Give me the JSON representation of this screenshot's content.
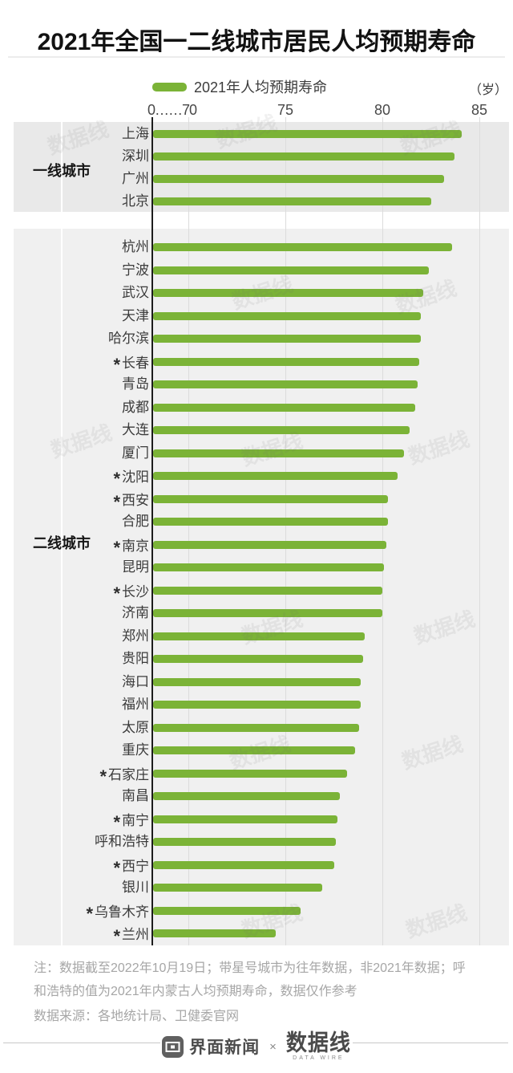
{
  "title": "2021年全国一二线城市居民人均预期寿命",
  "legend": {
    "label": "2021年人均预期寿命"
  },
  "unit_label": "（岁）",
  "axis": {
    "tick_labels": [
      "0……70",
      "75",
      "80",
      "85"
    ],
    "tick_values": [
      70,
      75,
      80,
      85
    ]
  },
  "colors": {
    "bar_green": "#7bb337",
    "axis_line": "#1d1d1d"
  },
  "chart_data": {
    "type": "bar",
    "orientation": "horizontal",
    "title": "2021年全国一二线城市居民人均预期寿命",
    "legend": [
      "2021年人均预期寿命"
    ],
    "unit": "岁",
    "xlabel": "人均预期寿命（岁）",
    "xlim": [
      70,
      85
    ],
    "axis_break_label": "0……70",
    "grid": true,
    "bar_color": "#7bb337",
    "star_meaning": "带星号城市为往年数据，非2021年数据",
    "groups": [
      {
        "label": "一线城市",
        "bars": [
          {
            "city": "上海",
            "value": 84.1,
            "star": false
          },
          {
            "city": "深圳",
            "value": 83.7,
            "star": false
          },
          {
            "city": "广州",
            "value": 83.2,
            "star": false
          },
          {
            "city": "北京",
            "value": 82.5,
            "star": false
          }
        ]
      },
      {
        "label": "二线城市",
        "bars": [
          {
            "city": "杭州",
            "value": 83.6,
            "star": false
          },
          {
            "city": "宁波",
            "value": 82.4,
            "star": false
          },
          {
            "city": "武汉",
            "value": 82.1,
            "star": false
          },
          {
            "city": "天津",
            "value": 82.0,
            "star": false
          },
          {
            "city": "哈尔滨",
            "value": 82.0,
            "star": false
          },
          {
            "city": "长春",
            "value": 81.9,
            "star": true
          },
          {
            "city": "青岛",
            "value": 81.8,
            "star": false
          },
          {
            "city": "成都",
            "value": 81.7,
            "star": false
          },
          {
            "city": "大连",
            "value": 81.4,
            "star": false
          },
          {
            "city": "厦门",
            "value": 81.1,
            "star": false
          },
          {
            "city": "沈阳",
            "value": 80.8,
            "star": true
          },
          {
            "city": "西安",
            "value": 80.3,
            "star": true
          },
          {
            "city": "合肥",
            "value": 80.3,
            "star": false
          },
          {
            "city": "南京",
            "value": 80.2,
            "star": true
          },
          {
            "city": "昆明",
            "value": 80.1,
            "star": false
          },
          {
            "city": "长沙",
            "value": 80.0,
            "star": true
          },
          {
            "city": "济南",
            "value": 80.0,
            "star": false
          },
          {
            "city": "郑州",
            "value": 79.1,
            "star": false
          },
          {
            "city": "贵阳",
            "value": 79.0,
            "star": false
          },
          {
            "city": "海口",
            "value": 78.9,
            "star": false
          },
          {
            "city": "福州",
            "value": 78.9,
            "star": false
          },
          {
            "city": "太原",
            "value": 78.8,
            "star": false
          },
          {
            "city": "重庆",
            "value": 78.6,
            "star": false
          },
          {
            "city": "石家庄",
            "value": 78.2,
            "star": true
          },
          {
            "city": "南昌",
            "value": 77.8,
            "star": false
          },
          {
            "city": "南宁",
            "value": 77.7,
            "star": true
          },
          {
            "city": "呼和浩特",
            "value": 77.6,
            "star": false
          },
          {
            "city": "西宁",
            "value": 77.5,
            "star": true
          },
          {
            "city": "银川",
            "value": 76.9,
            "star": false
          },
          {
            "city": "乌鲁木齐",
            "value": 75.8,
            "star": true
          },
          {
            "city": "兰州",
            "value": 74.5,
            "star": true
          }
        ]
      }
    ]
  },
  "notes": {
    "note": "注：数据截至2022年10月19日；带星号城市为往年数据，非2021年数据；呼和浩特的值为2021年内蒙古人均预期寿命，数据仅作参考",
    "source": "数据来源：各地统计局、卫健委官网"
  },
  "footer": {
    "brand_left": "界面新闻",
    "separator": "×",
    "brand_right": "数据线",
    "brand_right_sub": "DATA WIRE"
  },
  "watermark_text": "数据线"
}
